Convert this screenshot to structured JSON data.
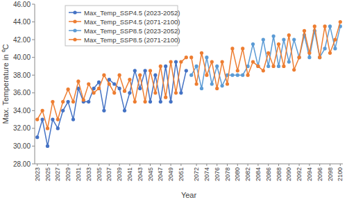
{
  "chart_data": {
    "type": "line",
    "x_label": "Year",
    "y_label": "Max. Temperature in ⁰C",
    "categories": [
      "2023",
      null,
      "2025",
      null,
      "2027",
      null,
      "2029",
      null,
      "2031",
      null,
      "2033",
      null,
      "2035",
      null,
      "2037",
      null,
      "2039",
      null,
      "2041",
      null,
      "2043",
      null,
      "2045",
      null,
      "2047",
      null,
      "2049",
      null,
      "2051",
      null,
      null,
      "2072",
      null,
      "2074",
      null,
      "2076",
      null,
      "2078",
      null,
      "2080",
      null,
      "2082",
      null,
      "2084",
      null,
      "2086",
      null,
      "2088",
      null,
      "2090",
      null,
      "2092",
      null,
      "2094",
      null,
      "2096",
      null,
      "2098",
      null,
      "2100"
    ],
    "series": [
      {
        "name": "Max_Temp_SSP4.5 (2023-2052)",
        "color": "#4472c4",
        "marker": "circle",
        "values": [
          31,
          33,
          30,
          33,
          32,
          34,
          35,
          33,
          36.5,
          35,
          35,
          36.5,
          37.2,
          34,
          37.5,
          37,
          36.5,
          34,
          36,
          38.5,
          36.5,
          38.5,
          35,
          38,
          35,
          39,
          35,
          39.5,
          36,
          38.5,
          null,
          null,
          null,
          null,
          null,
          null,
          null,
          null,
          null,
          null,
          null,
          null,
          null,
          null,
          null,
          null,
          null,
          null,
          null,
          null,
          null,
          null,
          null,
          null,
          null,
          null,
          null,
          null,
          null,
          null
        ]
      },
      {
        "name": "Max_Temp_SSP4.5 (2071-2100)",
        "color": "#ed7d31",
        "marker": "circle",
        "values": [
          33,
          34,
          32,
          35,
          33,
          35,
          36.4,
          35,
          37.3,
          35.2,
          37,
          36,
          36.5,
          38,
          37,
          36,
          38,
          36.2,
          37.5,
          35,
          38,
          35,
          38.5,
          36,
          39,
          35.5,
          39.5,
          36,
          39.5,
          40,
          null,
          null,
          null,
          null,
          null,
          null,
          null,
          null,
          null,
          null,
          null,
          null,
          null,
          null,
          null,
          null,
          null,
          null,
          null,
          null,
          null,
          null,
          null,
          null,
          null,
          null,
          null,
          null,
          null,
          null
        ]
      },
      {
        "name": "Max_Temp_SSP8.5 (2023-2052)",
        "color": "#5b9bd5",
        "marker": "circle",
        "values": [
          null,
          null,
          null,
          null,
          null,
          null,
          null,
          null,
          null,
          null,
          null,
          null,
          null,
          null,
          null,
          null,
          null,
          null,
          null,
          null,
          null,
          null,
          null,
          null,
          null,
          null,
          null,
          null,
          null,
          null,
          38,
          39,
          36.5,
          40,
          37,
          39,
          36.8,
          38,
          38,
          38,
          38,
          39,
          41.5,
          39,
          42,
          39,
          42.4,
          39,
          42,
          39.5,
          42,
          40,
          42.5,
          40,
          43,
          40,
          41,
          43.5,
          41,
          43.5
        ]
      },
      {
        "name": "Max_Temp_SSP8.5 (2071-2100)",
        "color": "#ed7d31",
        "marker": "circle",
        "values": [
          null,
          null,
          null,
          null,
          null,
          null,
          null,
          null,
          null,
          null,
          null,
          null,
          null,
          null,
          null,
          null,
          null,
          null,
          null,
          null,
          null,
          null,
          null,
          null,
          null,
          null,
          null,
          null,
          null,
          null,
          40,
          37,
          40.5,
          38,
          39.5,
          36.5,
          39.5,
          37,
          41,
          38.5,
          41,
          38,
          39.5,
          39,
          38.5,
          40.5,
          39,
          41.5,
          39,
          42.5,
          38.6,
          40,
          43,
          40.5,
          43.5,
          40,
          43.5,
          40.5,
          42,
          44
        ]
      }
    ],
    "ylim": [
      28,
      46
    ],
    "yticks": [
      {
        "value": 28,
        "label": "28.00"
      },
      {
        "value": 30,
        "label": "30.00"
      },
      {
        "value": 32,
        "label": "32.00"
      },
      {
        "value": 34,
        "label": "34.00"
      },
      {
        "value": 36,
        "label": "36.00"
      },
      {
        "value": 38,
        "label": "38.00"
      },
      {
        "value": 40,
        "label": "40.00"
      },
      {
        "value": 42,
        "label": "42.00"
      },
      {
        "value": 44,
        "label": "44.00"
      },
      {
        "value": 46,
        "label": "46.00"
      }
    ],
    "grid": false,
    "legend": "top-left"
  }
}
